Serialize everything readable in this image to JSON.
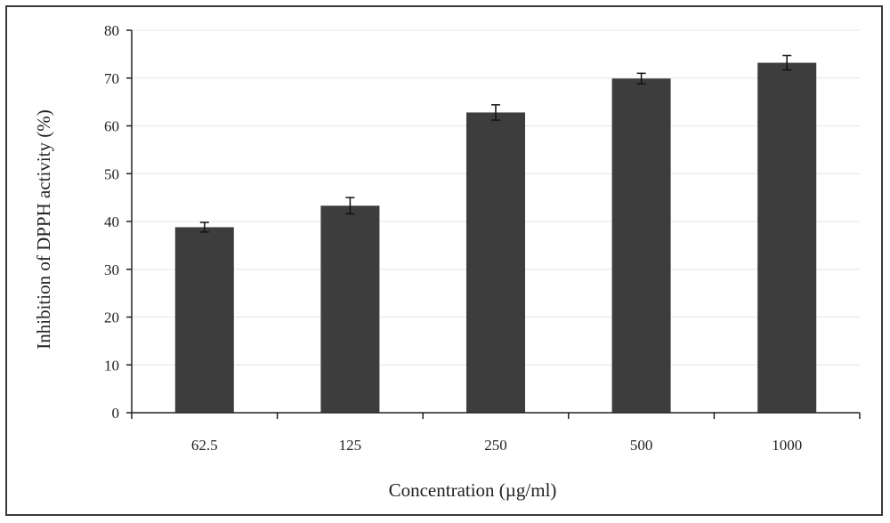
{
  "chart_data": {
    "type": "bar",
    "title": "",
    "xlabel": "Concentration (µg/ml)",
    "ylabel": "Inhibition of DPPH activity (%)",
    "categories": [
      "62.5",
      "125",
      "250",
      "500",
      "1000"
    ],
    "values": [
      38.8,
      43.3,
      62.8,
      69.9,
      73.2
    ],
    "error": [
      1.0,
      1.7,
      1.6,
      1.1,
      1.5
    ],
    "ylim": [
      0,
      80
    ],
    "yticks": [
      "0",
      "10",
      "20",
      "30",
      "40",
      "50",
      "60",
      "70",
      "80"
    ],
    "grid": true,
    "bar_color": "#3d3d3d",
    "grid_color": "#e6e6e6"
  }
}
